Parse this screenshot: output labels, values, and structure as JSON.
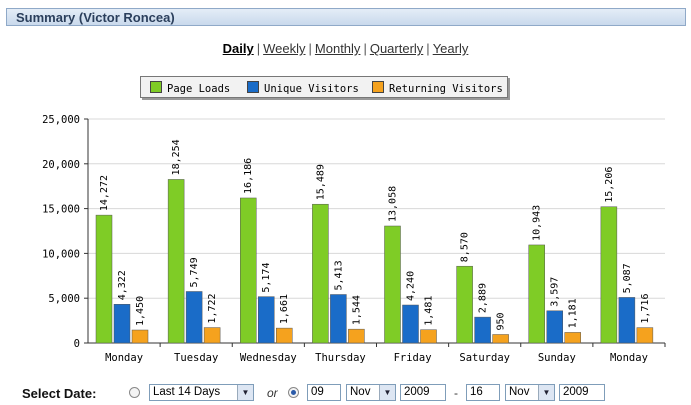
{
  "title": "Summary (Victor Roncea)",
  "tabs": [
    {
      "label": "Daily",
      "active": true
    },
    {
      "label": "Weekly",
      "active": false
    },
    {
      "label": "Monthly",
      "active": false
    },
    {
      "label": "Quarterly",
      "active": false
    },
    {
      "label": "Yearly",
      "active": false
    }
  ],
  "tab_separator": "|",
  "chart_data": {
    "type": "bar",
    "categories": [
      "Monday",
      "Tuesday",
      "Wednesday",
      "Thursday",
      "Friday",
      "Saturday",
      "Sunday",
      "Monday"
    ],
    "series": [
      {
        "name": "Page Loads",
        "color": "#7fcc26",
        "values": [
          14272,
          18254,
          16186,
          15489,
          13058,
          8570,
          10943,
          15206
        ]
      },
      {
        "name": "Unique Visitors",
        "color": "#1a6cc8",
        "values": [
          4322,
          5749,
          5174,
          5413,
          4240,
          2889,
          3597,
          5087
        ]
      },
      {
        "name": "Returning Visitors",
        "color": "#f5a21e",
        "values": [
          1450,
          1722,
          1661,
          1544,
          1481,
          950,
          1181,
          1716
        ]
      }
    ],
    "value_labels": [
      [
        "14,272",
        "18,254",
        "16,186",
        "15,489",
        "13,058",
        "8,570",
        "10,943",
        "15,206"
      ],
      [
        "4,322",
        "5,749",
        "5,174",
        "5,413",
        "4,240",
        "2,889",
        "3,597",
        "5,087"
      ],
      [
        "1,450",
        "1,722",
        "1,661",
        "1,544",
        "1,481",
        "950",
        "1,181",
        "1,716"
      ]
    ],
    "yticks": [
      "0",
      "5,000",
      "10,000",
      "15,000",
      "20,000",
      "25,000"
    ],
    "ylim": [
      0,
      25000
    ],
    "grid": true,
    "legend": "top-center"
  },
  "date_select": {
    "label": "Select Date:",
    "range_option": "Last 14 Days",
    "or_text": "or",
    "from_day": "09",
    "from_month": "Nov",
    "from_year": "2009",
    "dash": "-",
    "to_day": "16",
    "to_month": "Nov",
    "to_year": "2009",
    "arrow_icon": "▼"
  }
}
